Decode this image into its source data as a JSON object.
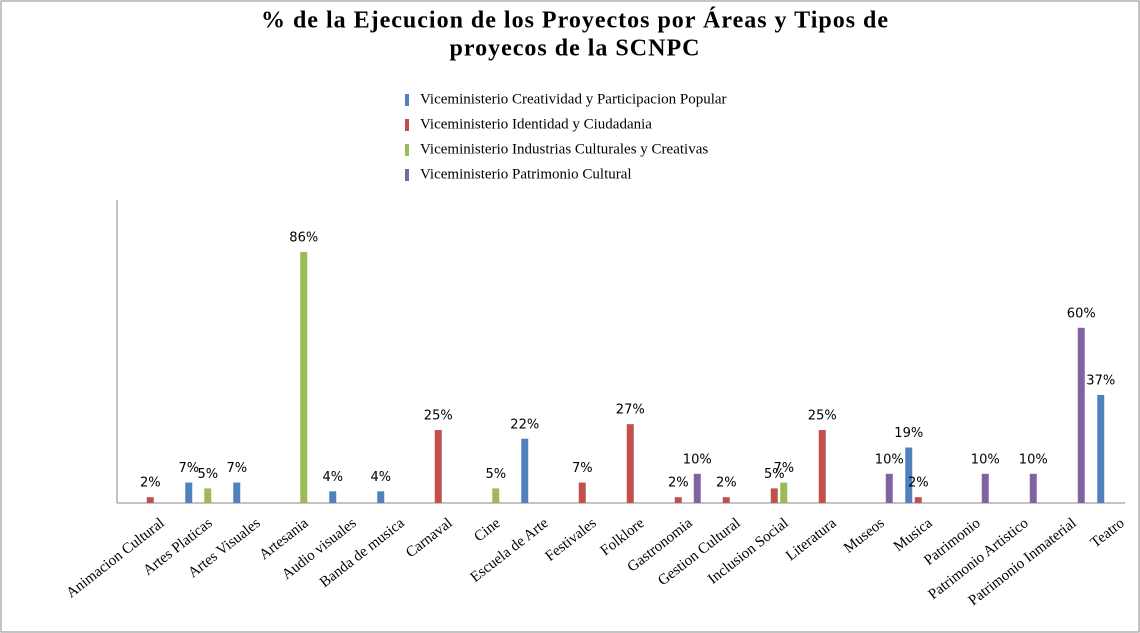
{
  "chart_data": {
    "type": "bar",
    "title": [
      "% de la Ejecucion de los Proyectos por  Áreas y Tipos de",
      "proyecos  de la  SCNPC"
    ],
    "categories": [
      "Animacion Cultural",
      "Artes Platicas",
      "Artes Visuales",
      "Artesania",
      "Audio visuales",
      "Banda de musica",
      "Carnaval",
      "Cine",
      "Escuela de Arte",
      "Festivales",
      "Folklore",
      "Gastronomia",
      "Gestion Cultural",
      "Inclusion Social",
      "Literatura",
      "Museos",
      "Musica",
      "Patrimonio",
      "Patrimonio Artistico",
      "Patrimonio Inmaterial",
      "Teatro"
    ],
    "series": [
      {
        "name": "Viceministerio Creatividad y Participacion Popular",
        "color": "#4f81bd",
        "values": [
          null,
          7,
          7,
          null,
          4,
          4,
          null,
          null,
          22,
          null,
          null,
          null,
          null,
          null,
          null,
          null,
          19,
          null,
          null,
          null,
          37
        ],
        "value_labels": [
          null,
          "7%",
          "7%",
          null,
          "4%",
          "4%",
          null,
          null,
          "22%",
          null,
          null,
          null,
          null,
          null,
          null,
          null,
          "19%",
          null,
          null,
          null,
          "37%"
        ]
      },
      {
        "name": "Viceministerio Identidad y Ciudadania",
        "color": "#c0504d",
        "values": [
          2,
          null,
          null,
          null,
          null,
          null,
          25,
          null,
          null,
          7,
          27,
          2,
          2,
          5,
          25,
          null,
          2,
          null,
          null,
          null,
          null
        ],
        "value_labels": [
          "2%",
          null,
          null,
          null,
          null,
          null,
          "25%",
          null,
          null,
          "7%",
          "27%",
          "2%",
          "2%",
          "5%",
          "25%",
          null,
          "2%",
          null,
          null,
          null,
          null
        ]
      },
      {
        "name": "Viceministerio Industrias Culturales y Creativas",
        "color": "#9bbb59",
        "values": [
          null,
          5,
          null,
          86,
          null,
          null,
          null,
          5,
          null,
          null,
          null,
          null,
          null,
          7,
          null,
          null,
          null,
          null,
          null,
          null,
          null
        ],
        "value_labels": [
          null,
          "5%",
          null,
          "86%",
          null,
          null,
          null,
          "5%",
          null,
          null,
          null,
          null,
          null,
          "7%",
          null,
          null,
          null,
          null,
          null,
          null,
          null
        ]
      },
      {
        "name": "Viceministerio Patrimonio Cultural",
        "color": "#8064a2",
        "values": [
          null,
          null,
          null,
          null,
          null,
          null,
          null,
          null,
          null,
          null,
          null,
          10,
          null,
          null,
          null,
          10,
          null,
          10,
          10,
          60,
          null
        ],
        "value_labels": [
          null,
          null,
          null,
          null,
          null,
          null,
          null,
          null,
          null,
          null,
          null,
          "10%",
          null,
          null,
          null,
          "10%",
          null,
          "10%",
          "10%",
          "60%",
          null
        ]
      }
    ],
    "ylim": [
      0,
      100
    ]
  }
}
